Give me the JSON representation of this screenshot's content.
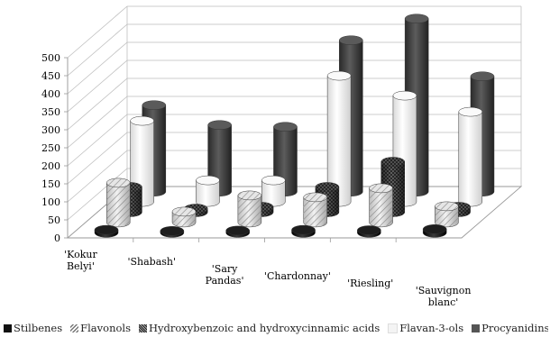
{
  "chart_data": {
    "type": "bar",
    "subtype": "3d-cylinder",
    "categories": [
      "'Kokur Belyi'",
      "'Shabash'",
      "'Sary Pandas'",
      "'Chardonnay'",
      "'Riesling'",
      "'Sauvignon blanc'"
    ],
    "series": [
      {
        "name": "Stilbenes",
        "values": [
          8,
          5,
          6,
          8,
          7,
          10
        ]
      },
      {
        "name": "Flavonols",
        "values": [
          110,
          30,
          75,
          70,
          95,
          45
        ]
      },
      {
        "name": "Hydroxybenzoic and hydroxycinnamic acids",
        "values": [
          70,
          10,
          15,
          70,
          140,
          15
        ]
      },
      {
        "name": "Flavan-3-ols",
        "values": [
          225,
          60,
          60,
          350,
          295,
          250
        ]
      },
      {
        "name": "Procyanidins",
        "values": [
          240,
          185,
          180,
          420,
          480,
          320
        ]
      }
    ],
    "yticks": [
      0,
      50,
      100,
      150,
      200,
      250,
      300,
      350,
      400,
      450,
      500
    ],
    "ylim": [
      0,
      500
    ],
    "legend_position": "bottom",
    "colors": {
      "Stilbenes": "#1a1a1a",
      "Flavonols": "#d9d9d9",
      "Hydroxybenzoic and hydroxycinnamic acids": "#555555",
      "Flavan-3-ols": "#f4f4f4",
      "Procyanidins": "#4a4a4a"
    },
    "grid": true
  }
}
